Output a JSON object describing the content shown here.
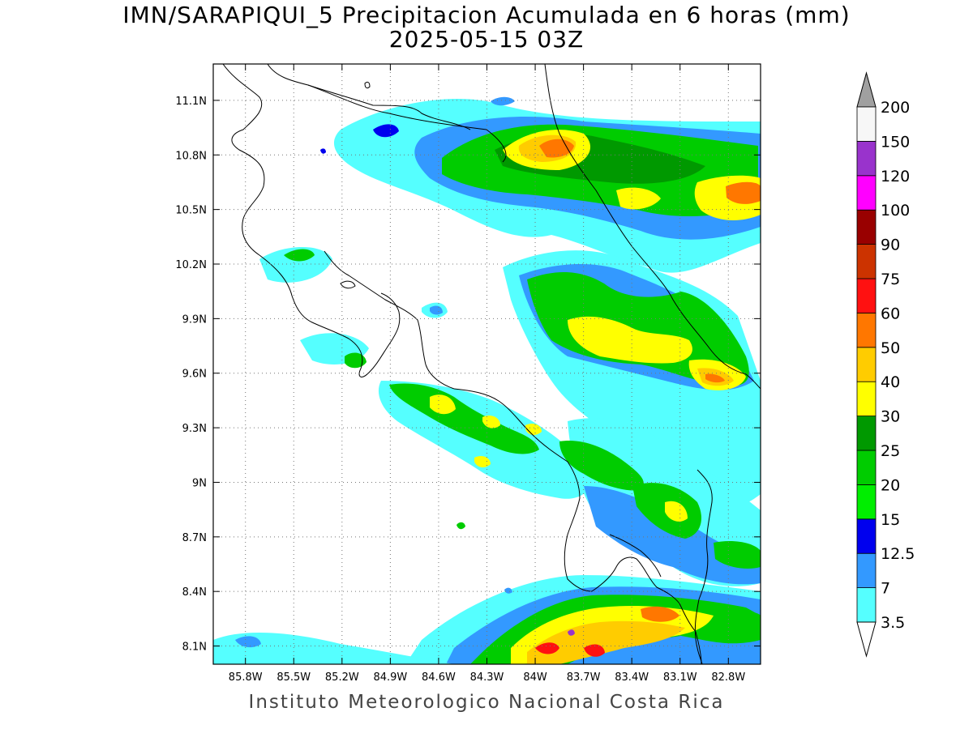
{
  "title": {
    "line1": "IMN/SARAPIQUI_5 Precipitacion Acumulada en 6 horas (mm)",
    "line2": "2025-05-15 03Z"
  },
  "footer": "Instituto Meteorologico Nacional Costa Rica",
  "axes": {
    "lon_range": [
      -86.0,
      -82.6
    ],
    "lat_range": [
      8.0,
      11.3
    ],
    "lon_ticks": [
      "85.8W",
      "85.5W",
      "85.2W",
      "84.9W",
      "84.6W",
      "84.3W",
      "84W",
      "83.7W",
      "83.4W",
      "83.1W",
      "82.8W"
    ],
    "lat_ticks": [
      "11.1N",
      "10.8N",
      "10.5N",
      "10.2N",
      "9.9N",
      "9.6N",
      "9.3N",
      "9N",
      "8.7N",
      "8.4N",
      "8.1N"
    ],
    "grid": true
  },
  "colorbar": {
    "levels": [
      "3.5",
      "7",
      "12.5",
      "15",
      "20",
      "25",
      "30",
      "40",
      "50",
      "60",
      "75",
      "90",
      "100",
      "120",
      "150",
      "200"
    ],
    "colors": [
      "#55ffff",
      "#3399ff",
      "#0000ee",
      "#00ee00",
      "#00cc00",
      "#009900",
      "#ffff00",
      "#ffcc00",
      "#ff7700",
      "#ff1111",
      "#cc3300",
      "#990000",
      "#ff00ff",
      "#9933cc",
      "#f7f7f7",
      "#a0a0a0"
    ],
    "triangle_low_color": "#ffffff",
    "triangle_high_color": "#a0a0a0"
  }
}
